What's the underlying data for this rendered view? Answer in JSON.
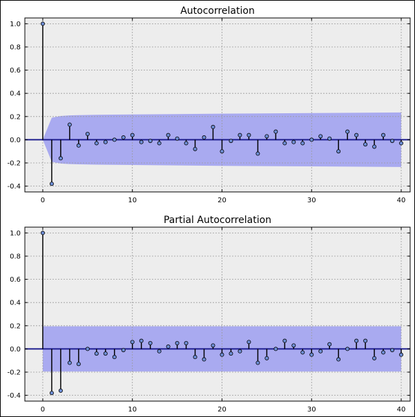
{
  "colors": {
    "axes_bg": "#ededed",
    "band": "#a9aaf0",
    "zero_line": "#1f1f8f",
    "stem": "#000000",
    "marker": "#6f8fd6",
    "grid": "#9a9a9a"
  },
  "chart_data": [
    {
      "type": "stem",
      "title": "Autocorrelation",
      "xlabel": "",
      "ylabel": "",
      "xlim": [
        -2,
        41
      ],
      "ylim": [
        -0.45,
        1.05
      ],
      "xticks": [
        0,
        10,
        20,
        30,
        40
      ],
      "xtick_labels": [
        "0",
        "10",
        "20",
        "30",
        "40"
      ],
      "yticks": [
        -0.4,
        -0.2,
        0.0,
        0.2,
        0.4,
        0.6,
        0.8,
        1.0
      ],
      "ytick_labels": [
        "-0.4",
        "-0.2",
        "0.0",
        "0.2",
        "0.4",
        "0.6",
        "0.8",
        "1.0"
      ],
      "grid": true,
      "x": [
        0,
        1,
        2,
        3,
        4,
        5,
        6,
        7,
        8,
        9,
        10,
        11,
        12,
        13,
        14,
        15,
        16,
        17,
        18,
        19,
        20,
        21,
        22,
        23,
        24,
        25,
        26,
        27,
        28,
        29,
        30,
        31,
        32,
        33,
        34,
        35,
        36,
        37,
        38,
        39,
        40
      ],
      "values": [
        1.0,
        -0.38,
        -0.16,
        0.13,
        -0.05,
        0.05,
        -0.03,
        -0.02,
        0.0,
        0.02,
        0.04,
        -0.02,
        -0.01,
        -0.03,
        0.04,
        0.01,
        -0.03,
        -0.08,
        0.02,
        0.11,
        -0.1,
        -0.01,
        0.04,
        0.04,
        -0.12,
        0.03,
        0.07,
        -0.03,
        -0.02,
        -0.03,
        0.0,
        0.03,
        0.01,
        -0.1,
        0.07,
        0.04,
        -0.04,
        -0.06,
        0.04,
        -0.01,
        -0.03
      ],
      "confidence_band": {
        "x": [
          0,
          1,
          2,
          3,
          4,
          6,
          10,
          20,
          30,
          40
        ],
        "upper": [
          0.0,
          0.19,
          0.205,
          0.21,
          0.212,
          0.215,
          0.218,
          0.225,
          0.23,
          0.235
        ],
        "lower": [
          0.0,
          -0.19,
          -0.205,
          -0.21,
          -0.212,
          -0.215,
          -0.218,
          -0.225,
          -0.23,
          -0.235
        ]
      }
    },
    {
      "type": "stem",
      "title": "Partial Autocorrelation",
      "xlabel": "",
      "ylabel": "",
      "xlim": [
        -2,
        41
      ],
      "ylim": [
        -0.45,
        1.05
      ],
      "xticks": [
        0,
        10,
        20,
        30,
        40
      ],
      "xtick_labels": [
        "0",
        "10",
        "20",
        "30",
        "40"
      ],
      "yticks": [
        -0.4,
        -0.2,
        0.0,
        0.2,
        0.4,
        0.6,
        0.8,
        1.0
      ],
      "ytick_labels": [
        "-0.4",
        "-0.2",
        "0.0",
        "0.2",
        "0.4",
        "0.6",
        "0.8",
        "1.0"
      ],
      "grid": true,
      "x": [
        0,
        1,
        2,
        3,
        4,
        5,
        6,
        7,
        8,
        9,
        10,
        11,
        12,
        13,
        14,
        15,
        16,
        17,
        18,
        19,
        20,
        21,
        22,
        23,
        24,
        25,
        26,
        27,
        28,
        29,
        30,
        31,
        32,
        33,
        34,
        35,
        36,
        37,
        38,
        39,
        40
      ],
      "values": [
        1.0,
        -0.38,
        -0.36,
        -0.12,
        -0.13,
        0.0,
        -0.04,
        -0.04,
        -0.07,
        -0.01,
        0.06,
        0.07,
        0.05,
        -0.02,
        0.02,
        0.05,
        0.05,
        -0.07,
        -0.09,
        0.03,
        -0.05,
        -0.04,
        -0.02,
        0.06,
        -0.12,
        -0.08,
        0.0,
        0.07,
        0.03,
        -0.03,
        -0.05,
        -0.02,
        0.04,
        -0.09,
        0.0,
        0.07,
        0.07,
        -0.08,
        -0.03,
        -0.01,
        -0.05
      ],
      "confidence_band": {
        "x": [
          0,
          40
        ],
        "upper": [
          0.195,
          0.195
        ],
        "lower": [
          -0.195,
          -0.195
        ]
      }
    }
  ]
}
